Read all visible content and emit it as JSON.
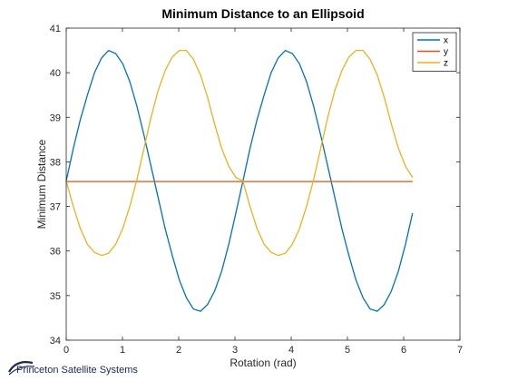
{
  "chart_data": {
    "type": "line",
    "title": "Minimum Distance to an Ellipsoid",
    "xlabel": "Rotation (rad)",
    "ylabel": "Minimum Distance",
    "xlim": [
      0,
      7
    ],
    "ylim": [
      34,
      41
    ],
    "xticks": [
      "0",
      "1",
      "2",
      "3",
      "4",
      "5",
      "6",
      "7"
    ],
    "yticks": [
      "34",
      "35",
      "36",
      "37",
      "38",
      "39",
      "40",
      "41"
    ],
    "grid": false,
    "legend_position": "top-right",
    "x": [
      0.0,
      0.1257,
      0.2513,
      0.377,
      0.5027,
      0.6283,
      0.754,
      0.8796,
      1.0053,
      1.131,
      1.2566,
      1.3823,
      1.508,
      1.6336,
      1.7593,
      1.885,
      2.0106,
      2.1363,
      2.2619,
      2.3876,
      2.5133,
      2.6389,
      2.7646,
      2.8903,
      3.0159,
      3.1416,
      3.2673,
      3.3929,
      3.5186,
      3.6442,
      3.7699,
      3.8956,
      4.0212,
      4.1469,
      4.2726,
      4.3982,
      4.5239,
      4.6496,
      4.7752,
      4.9009,
      5.0265,
      5.1522,
      5.2779,
      5.4035,
      5.5292,
      5.6549,
      5.7805,
      5.9062,
      6.0319,
      6.1575
    ],
    "series": [
      {
        "name": "x",
        "color": "#0072BD",
        "values": [
          37.57,
          38.3,
          38.95,
          39.5,
          40.0,
          40.33,
          40.5,
          40.43,
          40.2,
          39.8,
          39.25,
          38.6,
          37.9,
          37.2,
          36.5,
          35.9,
          35.35,
          34.95,
          34.7,
          34.65,
          34.8,
          35.1,
          35.55,
          36.15,
          36.85,
          37.57,
          38.3,
          38.95,
          39.5,
          40.0,
          40.33,
          40.5,
          40.43,
          40.2,
          39.8,
          39.25,
          38.6,
          37.9,
          37.2,
          36.5,
          35.9,
          35.35,
          34.95,
          34.7,
          34.65,
          34.8,
          35.1,
          35.55,
          36.15,
          36.85
        ]
      },
      {
        "name": "y",
        "color": "#D95319",
        "values": [
          37.56,
          37.56,
          37.56,
          37.56,
          37.56,
          37.56,
          37.56,
          37.56,
          37.56,
          37.56,
          37.56,
          37.56,
          37.56,
          37.56,
          37.56,
          37.56,
          37.56,
          37.56,
          37.56,
          37.56,
          37.56,
          37.56,
          37.56,
          37.56,
          37.56,
          37.56,
          37.56,
          37.56,
          37.56,
          37.56,
          37.56,
          37.56,
          37.56,
          37.56,
          37.56,
          37.56,
          37.56,
          37.56,
          37.56,
          37.56,
          37.56,
          37.56,
          37.56,
          37.56,
          37.56,
          37.56,
          37.56,
          37.56,
          37.56,
          37.56
        ]
      },
      {
        "name": "z",
        "color": "#EDB120",
        "values": [
          37.57,
          37.0,
          36.5,
          36.15,
          35.97,
          35.9,
          35.95,
          36.15,
          36.5,
          37.0,
          37.6,
          38.3,
          39.0,
          39.6,
          40.05,
          40.35,
          40.5,
          40.5,
          40.3,
          39.95,
          39.45,
          38.85,
          38.3,
          37.9,
          37.65,
          37.57,
          37.0,
          36.5,
          36.15,
          35.97,
          35.9,
          35.95,
          36.15,
          36.5,
          37.0,
          37.6,
          38.3,
          39.0,
          39.6,
          40.05,
          40.35,
          40.5,
          40.5,
          40.3,
          39.95,
          39.45,
          38.85,
          38.3,
          37.9,
          37.65
        ]
      }
    ]
  },
  "footer": {
    "text": "Princeton Satellite Systems"
  }
}
